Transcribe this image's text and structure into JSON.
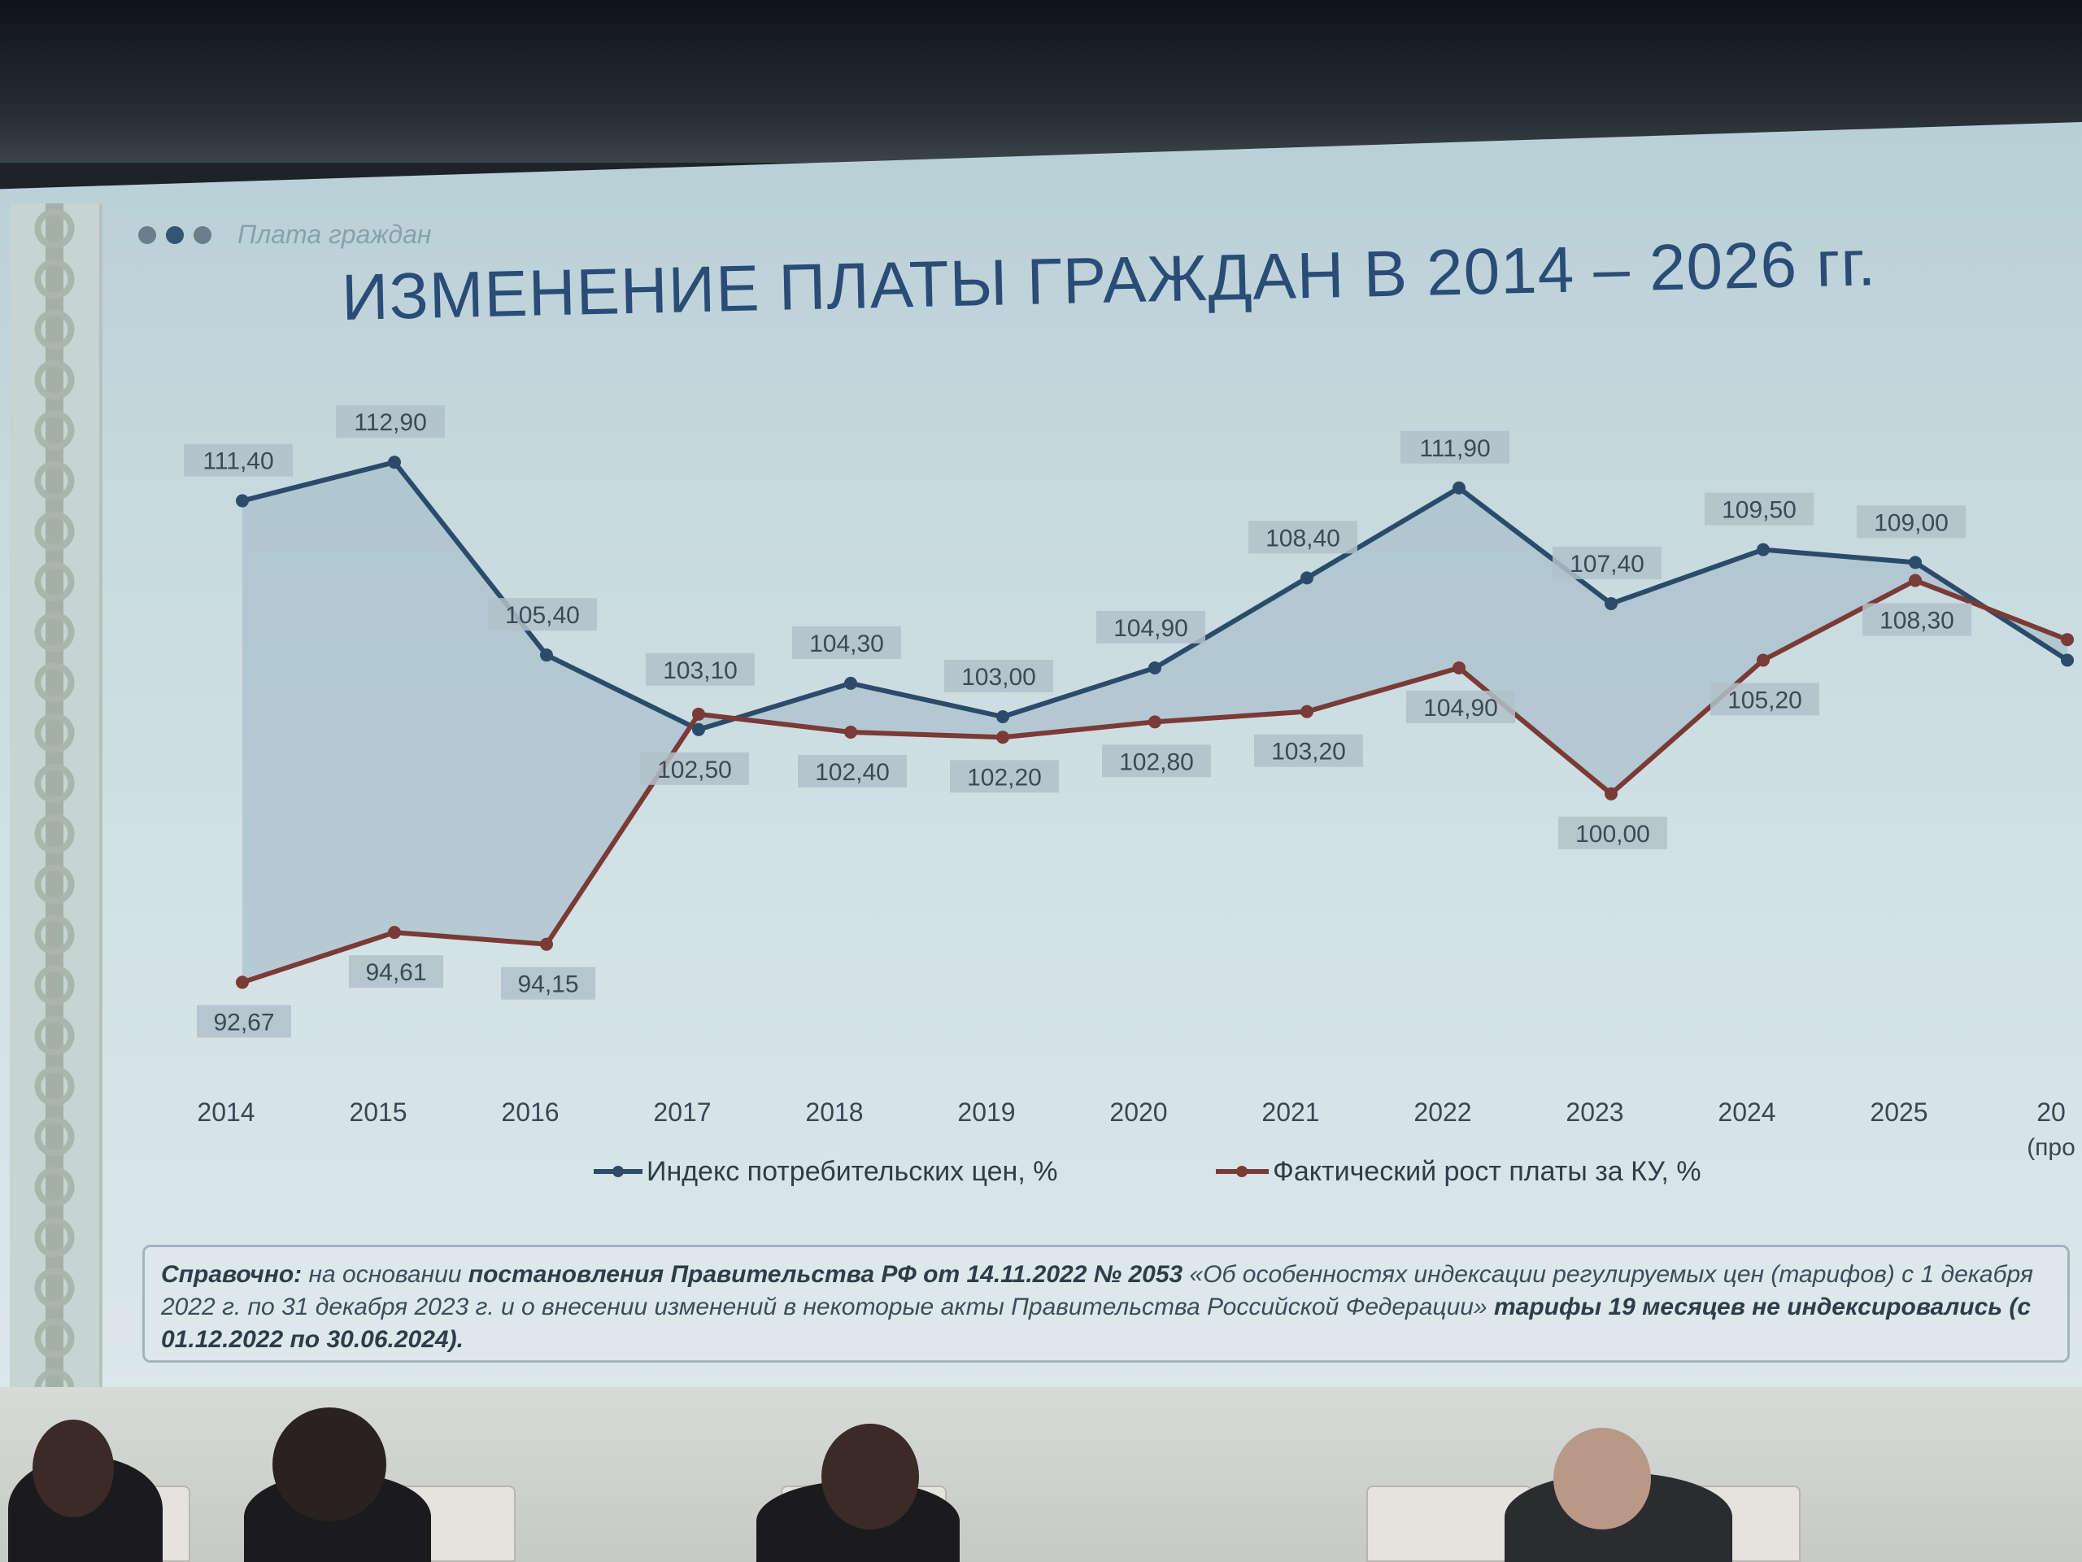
{
  "slide": {
    "section_label": "Плата граждан",
    "title": "ИЗМЕНЕНИЕ ПЛАТЫ ГРАЖДАН В 2014 – 2026 гг.",
    "note": {
      "lead": "Справочно:",
      "part1": " на основании ",
      "bold1": "постановления Правительства РФ от 14.11.2022 № 2053",
      "part2": " «Об особенностях индексации регулируемых цен (тарифов) с 1 декабря 2022 г. по 31 декабря 2023 г. и о внесении изменений в некоторые акты Правительства Российской Федерации» ",
      "bold2": "тарифы 19 месяцев не индексировались (с 01.12.2022 по 30.06.2024)."
    }
  },
  "colors": {
    "cpi_line": "#2c4b6b",
    "ku_line": "#7a3a36",
    "fill": "#9fb6c5",
    "label_bg": "#b2c1c9",
    "title": "#2a4c76"
  },
  "chart_data": {
    "type": "line",
    "categories": [
      "2014",
      "2015",
      "2016",
      "2017",
      "2018",
      "2019",
      "2020",
      "2021",
      "2022",
      "2023",
      "2024",
      "2025",
      "20"
    ],
    "category_sublabels": [
      "",
      "",
      "",
      "",
      "",
      "",
      "",
      "",
      "",
      "",
      "",
      "",
      "(про"
    ],
    "series": [
      {
        "name": "Индекс потребительских цен, %",
        "values": [
          111.4,
          112.9,
          105.4,
          102.5,
          104.3,
          103.0,
          104.9,
          108.4,
          111.9,
          107.4,
          109.5,
          109.0,
          105.2
        ],
        "labels": [
          "111,40",
          "112,90",
          "105,40",
          "102,50",
          "104,30",
          "103,00",
          "104,90",
          "108,40",
          "111,90",
          "107,40",
          "109,50",
          "109,00",
          ""
        ]
      },
      {
        "name": "Фактический рост платы за КУ, %",
        "values": [
          92.67,
          94.61,
          94.15,
          103.1,
          102.4,
          102.2,
          102.8,
          103.2,
          104.9,
          100.0,
          105.2,
          108.3,
          106.0
        ],
        "labels": [
          "92,67",
          "94,61",
          "94,15",
          "103,10",
          "102,40",
          "102,20",
          "102,80",
          "103,20",
          "104,90",
          "100,00",
          "105,20",
          "108,30",
          ""
        ]
      }
    ],
    "legend_position": "bottom",
    "grid": false,
    "area_between_series": true
  }
}
